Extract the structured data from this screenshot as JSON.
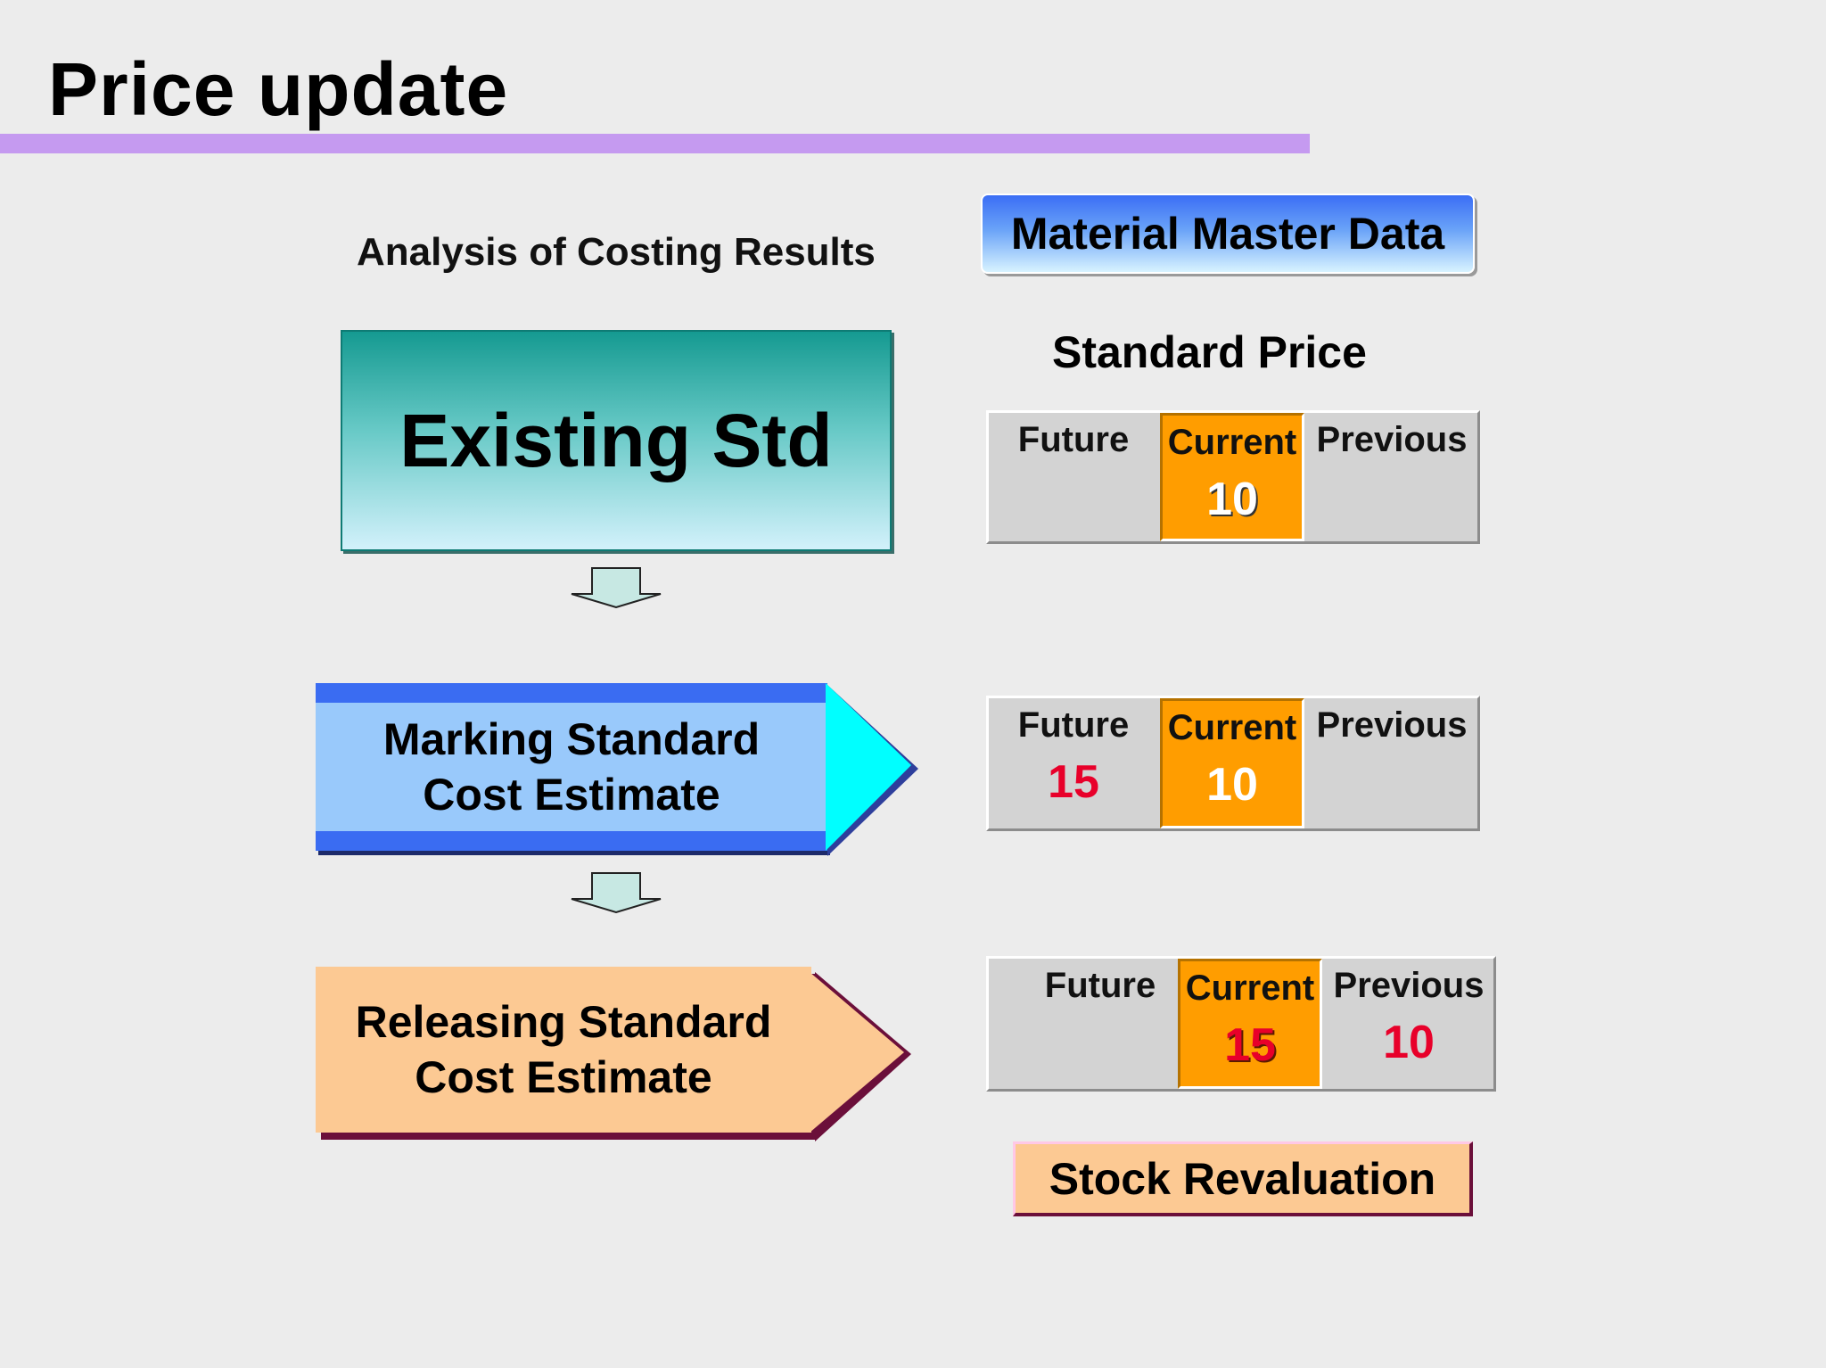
{
  "slide": {
    "title": "Price update",
    "subtitle": "Analysis of Costing Results",
    "material_master": "Material Master Data",
    "standard_price_heading": "Standard Price",
    "steps": {
      "existing": "Existing Std",
      "marking": [
        "Marking Standard",
        "Cost Estimate"
      ],
      "releasing": [
        "Releasing Standard",
        "Cost Estimate"
      ]
    },
    "tables": [
      {
        "future": {
          "label": "Future",
          "value": ""
        },
        "current": {
          "label": "Current",
          "value": "10"
        },
        "previous": {
          "label": "Previous",
          "value": ""
        }
      },
      {
        "future": {
          "label": "Future",
          "value": "15"
        },
        "current": {
          "label": "Current",
          "value": "10"
        },
        "previous": {
          "label": "Previous",
          "value": ""
        }
      },
      {
        "future": {
          "label": "Future",
          "value": ""
        },
        "current": {
          "label": "Current",
          "value": "15"
        },
        "previous": {
          "label": "Previous",
          "value": "10"
        }
      }
    ],
    "stock_revaluation": "Stock Revaluation"
  },
  "colors": {
    "title_bar": "#c59af0",
    "current_cell": "#ff9d00",
    "highlight_value": "#e8002a",
    "marking_box": "#99c9fb",
    "marking_arrow": "#00ffff",
    "releasing_box": "#fcc993"
  }
}
